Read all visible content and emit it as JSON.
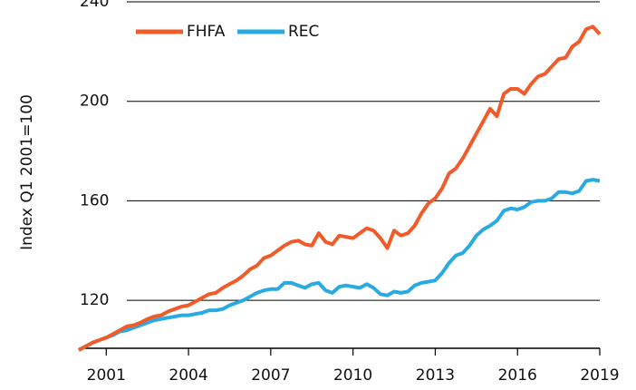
{
  "chart_data": {
    "type": "line",
    "y_label": "Index Q1 2001=100",
    "x": [
      2000,
      2000.25,
      2000.5,
      2000.75,
      2001,
      2001.25,
      2001.5,
      2001.75,
      2002,
      2002.25,
      2002.5,
      2002.75,
      2003,
      2003.25,
      2003.5,
      2003.75,
      2004,
      2004.25,
      2004.5,
      2004.75,
      2005,
      2005.25,
      2005.5,
      2005.75,
      2006,
      2006.25,
      2006.5,
      2006.75,
      2007,
      2007.25,
      2007.5,
      2007.75,
      2008,
      2008.25,
      2008.5,
      2008.75,
      2009,
      2009.25,
      2009.5,
      2009.75,
      2010,
      2010.25,
      2010.5,
      2010.75,
      2011,
      2011.25,
      2011.5,
      2011.75,
      2012,
      2012.25,
      2012.5,
      2012.75,
      2013,
      2013.25,
      2013.5,
      2013.75,
      2014,
      2014.25,
      2014.5,
      2014.75,
      2015,
      2015.25,
      2015.5,
      2015.75,
      2016,
      2016.25,
      2016.5,
      2016.75,
      2017,
      2017.25,
      2017.5,
      2017.75,
      2018,
      2018.25,
      2018.5,
      2018.75,
      2019
    ],
    "series": [
      {
        "name": "FHFA",
        "color": "#f15a29",
        "values": [
          100,
          101.5,
          103,
          104,
          105,
          106.5,
          108,
          109.5,
          110,
          111,
          112.5,
          113.5,
          114,
          115.5,
          116.5,
          117.5,
          118,
          119.5,
          121,
          122.5,
          123,
          125,
          126.5,
          128,
          130,
          132.5,
          134,
          137,
          138,
          140,
          142,
          143.5,
          144,
          142.5,
          142,
          147,
          143.5,
          142.5,
          146,
          145.5,
          145,
          147,
          149,
          148,
          145,
          141,
          148,
          146,
          147,
          150,
          155,
          159,
          161,
          165,
          171,
          173,
          177,
          182,
          187,
          192,
          197,
          194,
          203,
          205,
          205,
          203,
          207,
          210,
          211,
          214,
          217,
          217.5,
          222,
          224,
          229,
          230,
          227
        ]
      },
      {
        "name": "REC",
        "color": "#29abe2",
        "values": [
          100,
          101.5,
          103,
          104,
          105,
          106,
          107.5,
          108,
          109,
          110,
          111,
          112,
          112.5,
          113,
          113.5,
          114,
          114,
          114.5,
          115,
          116,
          116,
          116.5,
          118,
          119,
          120,
          121.5,
          123,
          124,
          124.5,
          124.5,
          127,
          127,
          126,
          125,
          126.5,
          127,
          124,
          123,
          125.5,
          126,
          125.5,
          125,
          126.5,
          125,
          122.5,
          122,
          123.5,
          123,
          123.5,
          126,
          127,
          127.5,
          128,
          131,
          135,
          138,
          139,
          142,
          146,
          148.5,
          150,
          152,
          156,
          157,
          156.5,
          157.5,
          159.5,
          160,
          160,
          161,
          163.5,
          163.5,
          163,
          164,
          168,
          168.5,
          168
        ]
      }
    ],
    "xlim": [
      2000,
      2019
    ],
    "xticks": [
      2001,
      2004,
      2007,
      2010,
      2013,
      2016,
      2019
    ],
    "ylim": [
      100,
      240
    ],
    "yticks": [
      120,
      160,
      200,
      240
    ],
    "grid": true
  }
}
